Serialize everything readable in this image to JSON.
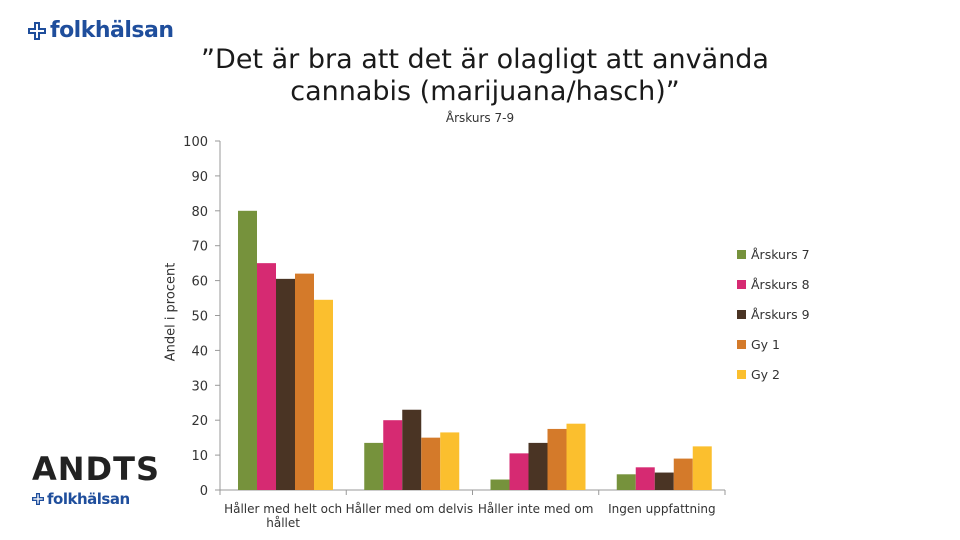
{
  "header": {
    "brand": "folkhälsan"
  },
  "footer_logo": {
    "title": "ANDTS",
    "brand": "folkhälsan"
  },
  "colors": {
    "brand": "#1f4e9c"
  },
  "chart_data": {
    "type": "bar",
    "title": "”Det är bra att det är olagligt att använda cannabis (marijuana/hasch)”",
    "subtitle": "Årskurs 7-9",
    "xlabel": "",
    "ylabel": "Andel i procent",
    "ylim": [
      0,
      100
    ],
    "yticks": [
      0,
      10,
      20,
      30,
      40,
      50,
      60,
      70,
      80,
      90,
      100
    ],
    "categories": [
      "Håller med helt och hållet",
      "Håller med om delvis",
      "Håller inte med om",
      "Ingen uppfattning"
    ],
    "series": [
      {
        "name": "Årskurs 7",
        "color": "#76923c",
        "values": [
          80,
          13.5,
          3,
          4.5
        ]
      },
      {
        "name": "Årskurs 8",
        "color": "#d62a72",
        "values": [
          65,
          20,
          10.5,
          6.5
        ]
      },
      {
        "name": "Årskurs 9",
        "color": "#4a3424",
        "values": [
          60.5,
          23,
          13.5,
          5
        ]
      },
      {
        "name": "Gy 1",
        "color": "#d47a2a",
        "values": [
          62,
          15,
          17.5,
          9
        ]
      },
      {
        "name": "Gy 2",
        "color": "#fbbf2e",
        "values": [
          54.5,
          16.5,
          19,
          12.5
        ]
      }
    ],
    "grid": false,
    "legend_position": "right"
  }
}
